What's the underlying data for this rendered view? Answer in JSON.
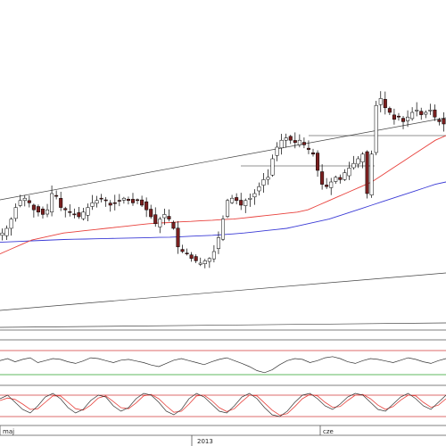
{
  "chart_data": {
    "type": "candlestick",
    "grid": false,
    "time_axis": {
      "month_labels": [
        "maj",
        "cze"
      ],
      "year_label": "2013"
    },
    "main_panel": {
      "price_range": [
        0,
        100
      ],
      "candles_close": [
        38,
        40,
        44,
        49,
        52,
        53,
        51,
        48,
        47,
        46,
        48,
        55,
        54,
        49,
        48,
        47,
        46,
        45,
        47,
        49,
        51,
        52,
        53,
        52,
        50,
        51,
        52,
        53,
        52,
        51,
        52,
        50,
        48,
        45,
        42,
        44,
        46,
        44,
        40,
        32,
        30,
        29,
        27,
        26,
        25,
        26,
        27,
        30,
        36,
        44,
        52,
        53,
        52,
        50,
        52,
        53,
        55,
        58,
        61,
        62,
        70,
        75,
        78,
        79,
        78,
        77,
        78,
        76,
        74,
        72,
        65,
        59,
        58,
        60,
        62,
        61,
        64,
        66,
        68,
        70,
        72,
        55,
        72,
        93,
        96,
        92,
        90,
        87,
        88,
        86,
        88,
        90,
        91,
        89,
        90,
        91,
        88,
        86,
        85
      ],
      "ma_red": [
        29,
        31,
        33,
        35,
        36,
        37,
        38,
        38.5,
        39,
        39.5,
        40,
        40.5,
        41,
        41.5,
        42,
        42.3,
        42.5,
        42.8,
        43,
        43.3,
        43.5,
        43.8,
        44,
        44.5,
        45,
        45.5,
        46,
        46.5,
        47,
        48,
        50,
        52,
        54,
        56,
        58,
        60,
        63,
        66,
        69,
        72,
        75,
        78,
        80
      ],
      "ma_blue": [
        34,
        34.2,
        34.4,
        34.6,
        34.8,
        35,
        35.2,
        35.3,
        35.4,
        35.5,
        35.6,
        35.7,
        35.8,
        35.9,
        36,
        36.1,
        36.2,
        36.4,
        36.6,
        36.8,
        37,
        37.3,
        37.6,
        38,
        38.5,
        39,
        39.5,
        40,
        41,
        42,
        43,
        44,
        45.5,
        47,
        48.5,
        50,
        51.5,
        53,
        54.5,
        56,
        57.5,
        59,
        60
      ]
    },
    "oscillator_1": {
      "overbought": 80,
      "oversold": 20,
      "values": [
        55,
        60,
        52,
        58,
        62,
        50,
        55,
        60,
        58,
        52,
        48,
        54,
        62,
        60,
        55,
        50,
        56,
        58,
        54,
        50,
        44,
        40,
        48,
        56,
        60,
        55,
        50,
        45,
        52,
        58,
        62,
        55,
        48,
        40,
        30,
        25,
        32,
        45,
        55,
        60,
        58,
        50,
        55,
        62,
        65,
        60,
        52,
        48,
        55,
        60,
        58,
        54,
        50,
        56,
        62,
        58,
        52,
        48,
        55,
        60
      ]
    },
    "oscillator_2": {
      "overbought": 80,
      "oversold": 20,
      "k_values": [
        70,
        80,
        60,
        40,
        30,
        50,
        75,
        85,
        70,
        45,
        30,
        40,
        65,
        80,
        75,
        50,
        35,
        45,
        70,
        85,
        80,
        60,
        35,
        25,
        40,
        70,
        85,
        75,
        55,
        35,
        30,
        50,
        75,
        85,
        70,
        45,
        25,
        20,
        35,
        60,
        80,
        85,
        70,
        50,
        40,
        55,
        75,
        85,
        80,
        60,
        40,
        35,
        55,
        75,
        85,
        70,
        50,
        40,
        60,
        80
      ],
      "d_values": [
        65,
        72,
        68,
        55,
        40,
        42,
        60,
        78,
        78,
        60,
        42,
        38,
        52,
        72,
        78,
        62,
        45,
        42,
        58,
        78,
        82,
        70,
        50,
        32,
        35,
        55,
        78,
        80,
        65,
        45,
        34,
        42,
        62,
        80,
        78,
        58,
        38,
        24,
        28,
        48,
        70,
        82,
        78,
        60,
        46,
        48,
        65,
        80,
        82,
        70,
        52,
        40,
        48,
        66,
        80,
        78,
        60,
        46,
        52,
        70
      ]
    }
  },
  "styles": {
    "candle_up": "#ffffff",
    "candle_down": "#7a1f1f",
    "wick": "#000000",
    "ma_red_color": "#e8413c",
    "ma_blue_color": "#3b3bd6",
    "trend_line": "#444444",
    "level_line": "#222222",
    "band_red": "#d23a3a",
    "band_green": "#2aa02a",
    "osc_line": "#333333",
    "stoch_k": "#333333",
    "stoch_d": "#e8413c"
  }
}
